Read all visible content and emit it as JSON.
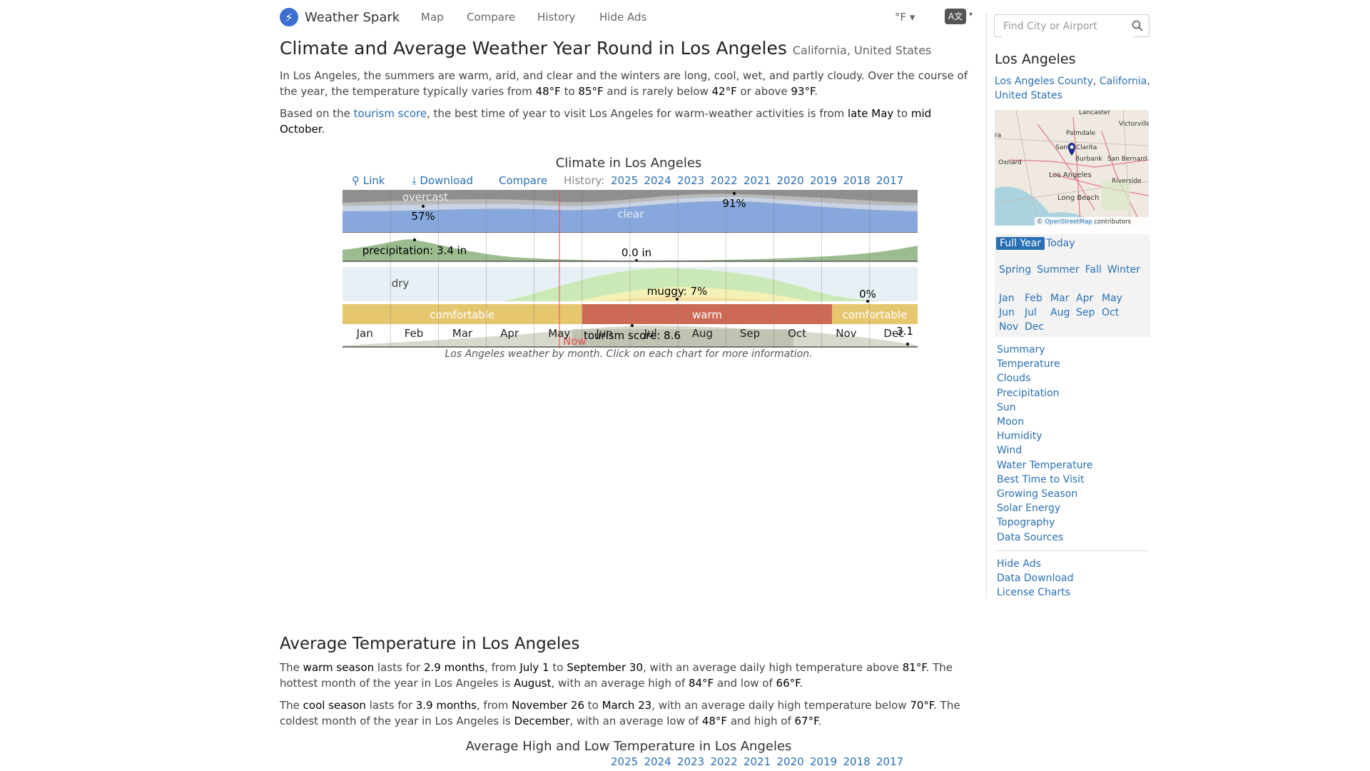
{
  "nav": {
    "brand": "Weather Spark",
    "items": [
      "Map",
      "Compare",
      "History",
      "Hide Ads"
    ],
    "units": "°F ▾",
    "language_icon": "A文"
  },
  "header": {
    "title": "Climate and Average Weather Year Round in Los Angeles",
    "subtitle": "California, United States"
  },
  "intro": {
    "p1_a": "In Los Angeles, the summers are warm, arid, and clear and the winters are long, cool, wet, and partly cloudy. Over the course of the year, the temperature typically varies from ",
    "t_low": "48°F",
    "p1_b": " to ",
    "t_high": "85°F",
    "p1_c": " and is rarely below ",
    "t_min": "42°F",
    "p1_d": " or above ",
    "t_max": "93°F",
    "p1_e": ".",
    "p2_a": "Based on the ",
    "p2_link": "tourism score",
    "p2_b": ", the best time of year to visit Los Angeles for warm-weather activities is from ",
    "p2_start": "late May",
    "p2_c": " to ",
    "p2_end": "mid October",
    "p2_d": "."
  },
  "climate_chart": {
    "title": "Climate in Los Angeles",
    "link": "Link",
    "download": "Download",
    "compare": "Compare",
    "history_label": "History:",
    "years": [
      "2025",
      "2024",
      "2023",
      "2022",
      "2021",
      "2020",
      "2019",
      "2018",
      "2017"
    ],
    "caption": "Los Angeles weather by month. Click on each chart for more information."
  },
  "chart_data": {
    "type": "area",
    "categories": [
      "Jan",
      "Feb",
      "Mar",
      "Apr",
      "May",
      "Jun",
      "Jul",
      "Aug",
      "Sep",
      "Oct",
      "Nov",
      "Dec"
    ],
    "now_label": "Now",
    "clouds": {
      "overcast_label": "overcast",
      "clear_label": "clear",
      "min_label": "57%",
      "max_label": "91%"
    },
    "precipitation": {
      "max_label": "precipitation: 3.4 in",
      "min_label": "0.0 in"
    },
    "humidity": {
      "dry_label": "dry",
      "max_label": "muggy: 7%",
      "min_label": "0%"
    },
    "temperature_bands": [
      {
        "label": "comfortable",
        "color": "#e6c66f"
      },
      {
        "label": "warm",
        "color": "#cd6a56"
      },
      {
        "label": "comfortable",
        "color": "#e6c66f"
      }
    ],
    "tourism": {
      "max_label": "tourism score: 8.6",
      "min_label": "3.1"
    }
  },
  "temp_section": {
    "title": "Average Temperature in Los Angeles",
    "p1_a": "The ",
    "p1_season": "warm season",
    "p1_b": " lasts for ",
    "p1_len": "2.9 months",
    "p1_c": ", from ",
    "p1_from": "July 1",
    "p1_d": " to ",
    "p1_to": "September 30",
    "p1_e": ", with an average daily high temperature above ",
    "p1_temp": "81°F",
    "p1_f": ". The hottest month of the year in Los Angeles is ",
    "p1_month": "August",
    "p1_g": ", with an average high of ",
    "p1_high": "84°F",
    "p1_h": " and low of ",
    "p1_low": "66°F",
    "p1_i": ".",
    "p2_a": "The ",
    "p2_season": "cool season",
    "p2_b": " lasts for ",
    "p2_len": "3.9 months",
    "p2_c": ", from ",
    "p2_from": "November 26",
    "p2_d": " to ",
    "p2_to": "March 23",
    "p2_e": ", with an average daily high temperature below ",
    "p2_temp": "70°F",
    "p2_f": ". The coldest month of the year in Los Angeles is ",
    "p2_month": "December",
    "p2_g": ", with an average low of ",
    "p2_low": "48°F",
    "p2_h": " and high of ",
    "p2_high": "67°F",
    "p2_i": ".",
    "chart_title": "Average High and Low Temperature in Los Angeles"
  },
  "sidebar": {
    "search_placeholder": "Find City or Airport",
    "city": "Los Angeles",
    "county": "Los Angeles County",
    "state": "California",
    "country": "United States",
    "map_labels": [
      "Lancaster",
      "Victorville",
      "Palmdale",
      "Santa Clarita",
      "Oxnard",
      "Burbank",
      "San Bernard",
      "Los Angeles",
      "Riverside",
      "Long Beach",
      "ra"
    ],
    "attribution_prefix": "©",
    "attribution_link": "OpenStreetMap",
    "attribution_suffix": "contributors",
    "period_tabs": [
      "Full Year",
      "Today"
    ],
    "seasons": [
      "Spring",
      "Summer",
      "Fall",
      "Winter"
    ],
    "months": [
      "Jan",
      "Feb",
      "Mar",
      "Apr",
      "May",
      "Jun",
      "Jul",
      "Aug",
      "Sep",
      "Oct",
      "Nov",
      "Dec"
    ],
    "sections": [
      "Summary",
      "Temperature",
      "Clouds",
      "Precipitation",
      "Sun",
      "Moon",
      "Humidity",
      "Wind",
      "Water Temperature",
      "Best Time to Visit",
      "Growing Season",
      "Solar Energy",
      "Topography",
      "Data Sources"
    ],
    "extras": [
      "Hide Ads",
      "Data Download",
      "License Charts"
    ]
  }
}
